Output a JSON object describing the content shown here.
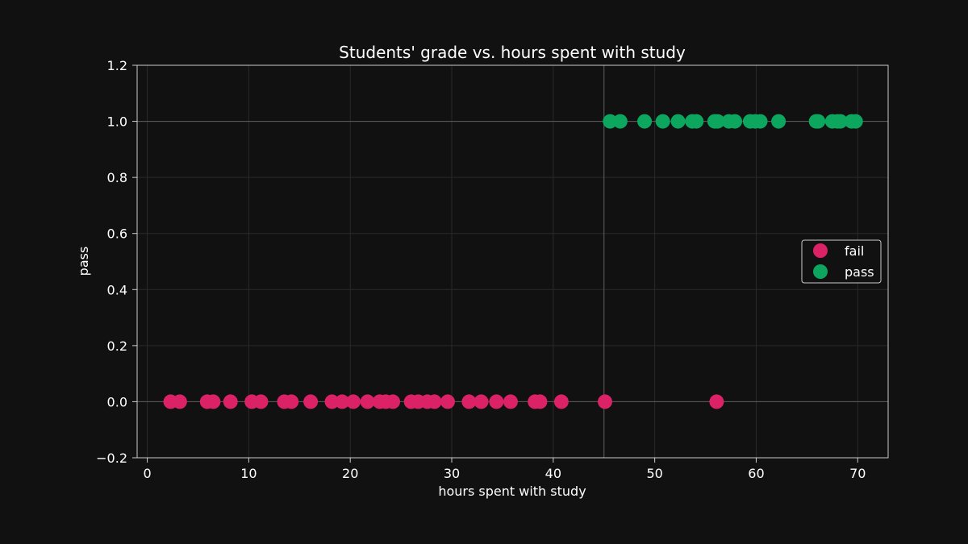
{
  "chart_data": {
    "type": "scatter",
    "title": "Students' grade vs. hours spent with study",
    "xlabel": "hours spent with study",
    "ylabel": "pass",
    "xlim": [
      -1,
      73
    ],
    "ylim": [
      -0.2,
      1.2
    ],
    "xticks": [
      0,
      10,
      20,
      30,
      40,
      50,
      60,
      70
    ],
    "yticks": [
      -0.2,
      0.0,
      0.2,
      0.4,
      0.6,
      0.8,
      1.0,
      1.2
    ],
    "xtick_labels": [
      "0",
      "10",
      "20",
      "30",
      "40",
      "50",
      "60",
      "70"
    ],
    "ytick_labels": [
      "−0.2",
      "0.0",
      "0.2",
      "0.4",
      "0.6",
      "0.8",
      "1.0",
      "1.2"
    ],
    "grid": true,
    "reference_lines": {
      "x": 45,
      "y": [
        0,
        1
      ]
    },
    "legend_position": "center-right",
    "series": [
      {
        "name": "fail",
        "color": "#dc2266",
        "x": [
          2.3,
          3.2,
          5.9,
          6.5,
          8.2,
          10.3,
          11.2,
          13.5,
          14.2,
          16.1,
          18.2,
          19.2,
          20.3,
          21.7,
          22.9,
          23.5,
          24.2,
          26.0,
          26.7,
          27.6,
          28.3,
          29.6,
          31.7,
          32.9,
          34.4,
          35.8,
          38.2,
          38.7,
          40.8,
          45.1,
          56.1
        ],
        "y": [
          0,
          0,
          0,
          0,
          0,
          0,
          0,
          0,
          0,
          0,
          0,
          0,
          0,
          0,
          0,
          0,
          0,
          0,
          0,
          0,
          0,
          0,
          0,
          0,
          0,
          0,
          0,
          0,
          0,
          0,
          0
        ]
      },
      {
        "name": "pass",
        "color": "#0ca65e",
        "x": [
          45.6,
          46.6,
          49.0,
          50.8,
          52.3,
          53.7,
          54.1,
          55.9,
          56.2,
          57.3,
          57.9,
          59.4,
          59.9,
          60.4,
          62.2,
          65.9,
          66.1,
          67.5,
          68.0,
          68.3,
          69.4,
          69.8
        ],
        "y": [
          1,
          1,
          1,
          1,
          1,
          1,
          1,
          1,
          1,
          1,
          1,
          1,
          1,
          1,
          1,
          1,
          1,
          1,
          1,
          1,
          1,
          1
        ]
      }
    ]
  },
  "colors": {
    "background": "#111111",
    "axis": "#cccccc",
    "grid": "#2a2a2a",
    "refline": "#555555",
    "text": "#ffffff"
  }
}
